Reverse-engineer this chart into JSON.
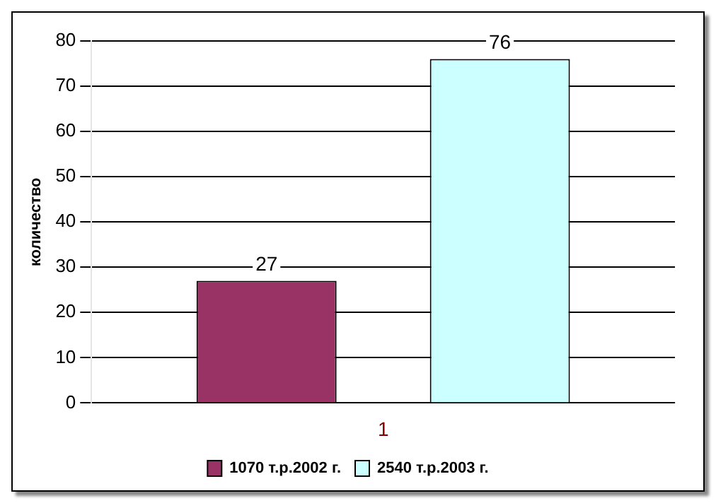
{
  "chart_data": {
    "type": "bar",
    "ylabel": "количество",
    "categories": [
      "1"
    ],
    "series": [
      {
        "name": "1070 т.р.2002 г.",
        "color": "#993366",
        "values": [
          27
        ]
      },
      {
        "name": "2540 т.р.2003 г.",
        "color": "#ccffff",
        "values": [
          76
        ]
      }
    ],
    "ylim": [
      0,
      80
    ],
    "yticks": [
      0,
      10,
      20,
      30,
      40,
      50,
      60,
      70,
      80
    ],
    "grid": "y",
    "legend": "bottom",
    "data_labels": true
  }
}
